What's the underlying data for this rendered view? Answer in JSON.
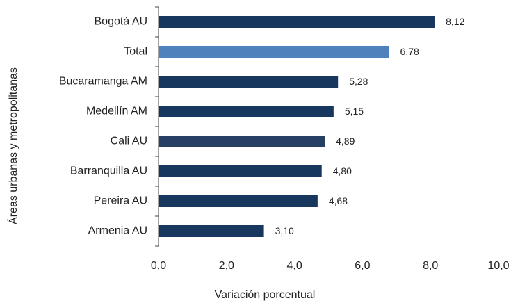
{
  "chart_data": {
    "type": "hbar",
    "y_axis_label": "Áreas urbanas y metropolitanas",
    "x_axis_label": "Variación porcentual",
    "categories": [
      "Bogotá AU",
      "Total",
      "Bucaramanga AM",
      "Medellín AM",
      "Cali AU",
      "Barranquilla AU",
      "Pereira AU",
      "Armenia AU"
    ],
    "values": [
      8.12,
      6.78,
      5.28,
      5.15,
      4.89,
      4.8,
      4.68,
      3.1
    ],
    "value_labels": [
      "8,12",
      "6,78",
      "5,28",
      "5,15",
      "4,89",
      "4,80",
      "4,68",
      "3,10"
    ],
    "colors": [
      "#17375e",
      "#4f81bd",
      "#17375e",
      "#17375e",
      "#263f63",
      "#17375e",
      "#17375e",
      "#17375e"
    ],
    "xlim": [
      0,
      10
    ],
    "xticks": [
      {
        "value": 0,
        "label": "0,0"
      },
      {
        "value": 2,
        "label": "2,0"
      },
      {
        "value": 4,
        "label": "4,0"
      },
      {
        "value": 6,
        "label": "6,0"
      },
      {
        "value": 8,
        "label": "8,0"
      },
      {
        "value": 10,
        "label": "10,0"
      }
    ]
  }
}
